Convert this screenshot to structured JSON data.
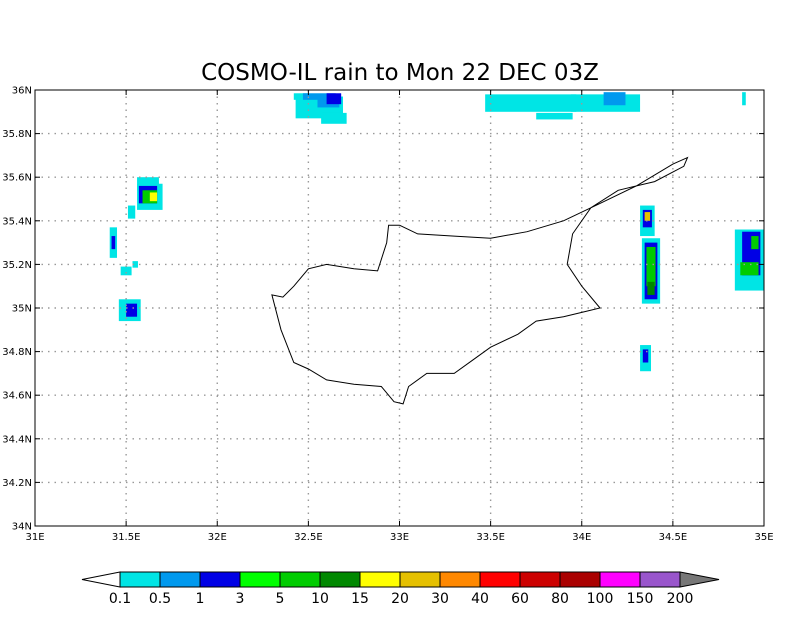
{
  "title": "COSMO-IL rain to Mon 22 DEC 03Z",
  "map": {
    "lon_range": [
      31,
      35
    ],
    "lat_range": [
      34,
      36
    ],
    "x_ticks": [
      "31E",
      "31.5E",
      "32E",
      "32.5E",
      "33E",
      "33.5E",
      "34E",
      "34.5E",
      "35E"
    ],
    "y_ticks": [
      "34N",
      "34.2N",
      "34.4N",
      "34.6N",
      "34.8N",
      "35N",
      "35.2N",
      "35.4N",
      "35.6N",
      "35.8N",
      "36N"
    ],
    "gridlines": true,
    "coastline": "Cyprus"
  },
  "legend": {
    "labels": [
      "0.1",
      "0.5",
      "1",
      "3",
      "5",
      "10",
      "15",
      "20",
      "30",
      "40",
      "60",
      "80",
      "100",
      "150",
      "200"
    ],
    "colors": [
      "#00e5e5",
      "#0099ee",
      "#0000e5",
      "#00ff00",
      "#00cc00",
      "#008800",
      "#ffff00",
      "#e5c000",
      "#ff8800",
      "#ff0000",
      "#cc0000",
      "#aa0000",
      "#ff00ff",
      "#9955cc"
    ],
    "under_color": "#ffffff",
    "over_color": "#777777"
  },
  "colors": {
    "cyan": "#00e5e5",
    "lightblue": "#0099ee",
    "blue": "#0000e5",
    "lime": "#00ff00",
    "green": "#00cc00",
    "darkgreen": "#008800",
    "yellow": "#ffff00",
    "gold": "#e5c000"
  },
  "rain_cells": [
    {
      "lon": 32.46,
      "lat": 35.97,
      "w": 0.08,
      "h": 0.03,
      "c": "cyan"
    },
    {
      "lon": 32.56,
      "lat": 35.92,
      "w": 0.26,
      "h": 0.1,
      "c": "cyan"
    },
    {
      "lon": 32.64,
      "lat": 35.87,
      "w": 0.14,
      "h": 0.05,
      "c": "cyan"
    },
    {
      "lon": 32.56,
      "lat": 35.97,
      "w": 0.18,
      "h": 0.03,
      "c": "lightblue"
    },
    {
      "lon": 32.61,
      "lat": 35.94,
      "w": 0.12,
      "h": 0.04,
      "c": "lightblue"
    },
    {
      "lon": 32.64,
      "lat": 35.96,
      "w": 0.08,
      "h": 0.05,
      "c": "blue"
    },
    {
      "lon": 33.72,
      "lat": 35.94,
      "w": 0.5,
      "h": 0.08,
      "c": "cyan"
    },
    {
      "lon": 34.13,
      "lat": 35.94,
      "w": 0.38,
      "h": 0.08,
      "c": "cyan"
    },
    {
      "lon": 33.85,
      "lat": 35.88,
      "w": 0.2,
      "h": 0.03,
      "c": "cyan"
    },
    {
      "lon": 34.18,
      "lat": 35.96,
      "w": 0.12,
      "h": 0.06,
      "c": "lightblue"
    },
    {
      "lon": 34.89,
      "lat": 35.96,
      "w": 0.02,
      "h": 0.06,
      "c": "cyan"
    },
    {
      "lon": 31.62,
      "lat": 35.57,
      "w": 0.12,
      "h": 0.06,
      "c": "cyan"
    },
    {
      "lon": 31.63,
      "lat": 35.51,
      "w": 0.14,
      "h": 0.12,
      "c": "cyan"
    },
    {
      "lon": 31.62,
      "lat": 35.52,
      "w": 0.1,
      "h": 0.08,
      "c": "blue"
    },
    {
      "lon": 31.63,
      "lat": 35.51,
      "w": 0.08,
      "h": 0.06,
      "c": "green"
    },
    {
      "lon": 31.65,
      "lat": 35.51,
      "w": 0.04,
      "h": 0.04,
      "c": "yellow"
    },
    {
      "lon": 31.53,
      "lat": 35.44,
      "w": 0.04,
      "h": 0.06,
      "c": "cyan"
    },
    {
      "lon": 31.43,
      "lat": 35.3,
      "w": 0.04,
      "h": 0.14,
      "c": "cyan"
    },
    {
      "lon": 31.43,
      "lat": 35.3,
      "w": 0.02,
      "h": 0.06,
      "c": "blue"
    },
    {
      "lon": 31.5,
      "lat": 35.17,
      "w": 0.06,
      "h": 0.04,
      "c": "cyan"
    },
    {
      "lon": 31.55,
      "lat": 35.2,
      "w": 0.03,
      "h": 0.03,
      "c": "cyan"
    },
    {
      "lon": 31.52,
      "lat": 34.99,
      "w": 0.12,
      "h": 0.1,
      "c": "cyan"
    },
    {
      "lon": 31.53,
      "lat": 34.99,
      "w": 0.06,
      "h": 0.06,
      "c": "blue"
    },
    {
      "lon": 34.36,
      "lat": 35.4,
      "w": 0.08,
      "h": 0.14,
      "c": "cyan"
    },
    {
      "lon": 34.36,
      "lat": 35.41,
      "w": 0.05,
      "h": 0.08,
      "c": "blue"
    },
    {
      "lon": 34.36,
      "lat": 35.42,
      "w": 0.03,
      "h": 0.04,
      "c": "gold"
    },
    {
      "lon": 34.38,
      "lat": 35.17,
      "w": 0.1,
      "h": 0.3,
      "c": "cyan"
    },
    {
      "lon": 34.38,
      "lat": 35.17,
      "w": 0.07,
      "h": 0.26,
      "c": "blue"
    },
    {
      "lon": 34.38,
      "lat": 35.19,
      "w": 0.05,
      "h": 0.18,
      "c": "green"
    },
    {
      "lon": 34.38,
      "lat": 35.09,
      "w": 0.04,
      "h": 0.06,
      "c": "darkgreen"
    },
    {
      "lon": 34.35,
      "lat": 34.77,
      "w": 0.06,
      "h": 0.12,
      "c": "cyan"
    },
    {
      "lon": 34.35,
      "lat": 34.78,
      "w": 0.03,
      "h": 0.06,
      "c": "blue"
    },
    {
      "lon": 34.92,
      "lat": 35.22,
      "w": 0.16,
      "h": 0.28,
      "c": "cyan"
    },
    {
      "lon": 34.93,
      "lat": 35.25,
      "w": 0.1,
      "h": 0.2,
      "c": "blue"
    },
    {
      "lon": 34.92,
      "lat": 35.18,
      "w": 0.1,
      "h": 0.06,
      "c": "green"
    },
    {
      "lon": 34.95,
      "lat": 35.3,
      "w": 0.04,
      "h": 0.06,
      "c": "green"
    }
  ],
  "coastline_lonlat": [
    [
      33.0,
      35.38
    ],
    [
      33.1,
      35.34
    ],
    [
      33.3,
      35.33
    ],
    [
      33.5,
      35.32
    ],
    [
      33.7,
      35.35
    ],
    [
      33.9,
      35.4
    ],
    [
      34.1,
      35.48
    ],
    [
      34.3,
      35.56
    ],
    [
      34.5,
      35.66
    ],
    [
      34.58,
      35.69
    ],
    [
      34.56,
      35.65
    ],
    [
      34.4,
      35.58
    ],
    [
      34.2,
      35.54
    ],
    [
      34.05,
      35.46
    ],
    [
      33.95,
      35.34
    ],
    [
      33.92,
      35.2
    ],
    [
      34.0,
      35.1
    ],
    [
      34.1,
      35.0
    ],
    [
      34.0,
      34.98
    ],
    [
      33.9,
      34.96
    ],
    [
      33.75,
      34.94
    ],
    [
      33.65,
      34.88
    ],
    [
      33.5,
      34.82
    ],
    [
      33.4,
      34.76
    ],
    [
      33.3,
      34.7
    ],
    [
      33.15,
      34.7
    ],
    [
      33.05,
      34.64
    ],
    [
      33.02,
      34.56
    ],
    [
      32.97,
      34.57
    ],
    [
      32.9,
      34.64
    ],
    [
      32.75,
      34.65
    ],
    [
      32.6,
      34.67
    ],
    [
      32.5,
      34.72
    ],
    [
      32.42,
      34.75
    ],
    [
      32.35,
      34.9
    ],
    [
      32.3,
      35.06
    ],
    [
      32.36,
      35.05
    ],
    [
      32.42,
      35.1
    ],
    [
      32.5,
      35.18
    ],
    [
      32.6,
      35.2
    ],
    [
      32.75,
      35.18
    ],
    [
      32.88,
      35.17
    ],
    [
      32.93,
      35.3
    ],
    [
      32.94,
      35.38
    ],
    [
      33.0,
      35.38
    ]
  ]
}
